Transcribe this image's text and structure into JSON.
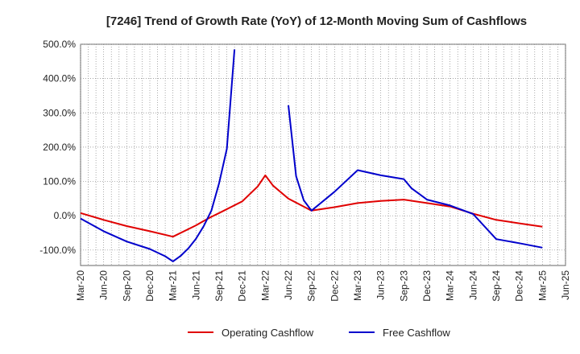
{
  "chart_data": {
    "type": "line",
    "title": "[7246]  Trend of Growth Rate (YoY) of 12-Month Moving Sum of Cashflows",
    "xlabel": "",
    "ylabel": "",
    "x_ticks": [
      "Mar-20",
      "Jun-20",
      "Sep-20",
      "Dec-20",
      "Mar-21",
      "Jun-21",
      "Sep-21",
      "Dec-21",
      "Mar-22",
      "Jun-22",
      "Sep-22",
      "Dec-22",
      "Mar-23",
      "Jun-23",
      "Sep-23",
      "Dec-23",
      "Mar-24",
      "Jun-24",
      "Sep-24",
      "Dec-24",
      "Mar-25",
      "Jun-25"
    ],
    "y_ticks": [
      "500.0%",
      "400.0%",
      "300.0%",
      "200.0%",
      "100.0%",
      "0.0%",
      "-100.0%"
    ],
    "y_tick_values": [
      500,
      400,
      300,
      200,
      100,
      0,
      -100
    ],
    "ylim": [
      -145,
      500
    ],
    "x_range": [
      "Mar-20",
      "Jun-25"
    ],
    "grid": true,
    "legend_position": "bottom",
    "series": [
      {
        "name": "Operating Cashflow",
        "color": "#e00000",
        "points": [
          [
            "Mar-20",
            8
          ],
          [
            "Jun-20",
            -12
          ],
          [
            "Sep-20",
            -30
          ],
          [
            "Dec-20",
            -45
          ],
          [
            "Mar-21",
            -61
          ],
          [
            "Jun-21",
            -28
          ],
          [
            "Jul-21",
            -15
          ],
          [
            "Aug-21",
            -3
          ],
          [
            "Sep-21",
            8
          ],
          [
            "Dec-21",
            42
          ],
          [
            "Feb-22",
            85
          ],
          [
            "Mar-22",
            118
          ],
          [
            "Apr-22",
            88
          ],
          [
            "Jun-22",
            50
          ],
          [
            "Sep-22",
            15
          ],
          [
            "Dec-22",
            25
          ],
          [
            "Mar-23",
            37
          ],
          [
            "Jun-23",
            43
          ],
          [
            "Sep-23",
            47
          ],
          [
            "Dec-23",
            37
          ],
          [
            "Mar-24",
            27
          ],
          [
            "Jun-24",
            6
          ],
          [
            "Sep-24",
            -12
          ],
          [
            "Dec-24",
            -22
          ],
          [
            "Mar-25",
            -32
          ]
        ]
      },
      {
        "name": "Free Cashflow",
        "color": "#0000cc",
        "segments": [
          [
            [
              "Mar-20",
              -8
            ],
            [
              "Jun-20",
              -45
            ],
            [
              "Sep-20",
              -75
            ],
            [
              "Dec-20",
              -97
            ],
            [
              "Feb-21",
              -118
            ],
            [
              "Mar-21",
              -133
            ],
            [
              "Apr-21",
              -117
            ],
            [
              "May-21",
              -95
            ],
            [
              "Jun-21",
              -67
            ],
            [
              "Jul-21",
              -30
            ],
            [
              "Aug-21",
              15
            ],
            [
              "Sep-21",
              95
            ],
            [
              "Oct-21",
              195
            ],
            [
              "Nov-21",
              485
            ]
          ],
          [
            [
              "Jun-22",
              322
            ],
            [
              "Jul-22",
              115
            ],
            [
              "Aug-22",
              45
            ],
            [
              "Sep-22",
              15
            ],
            [
              "Dec-22",
              70
            ],
            [
              "Mar-23",
              133
            ],
            [
              "Jun-23",
              118
            ],
            [
              "Sep-23",
              107
            ],
            [
              "Oct-23",
              80
            ],
            [
              "Dec-23",
              47
            ],
            [
              "Mar-24",
              30
            ],
            [
              "Jun-24",
              5
            ],
            [
              "Sep-24",
              -68
            ],
            [
              "Dec-24",
              -80
            ],
            [
              "Mar-25",
              -93
            ]
          ]
        ]
      }
    ]
  }
}
